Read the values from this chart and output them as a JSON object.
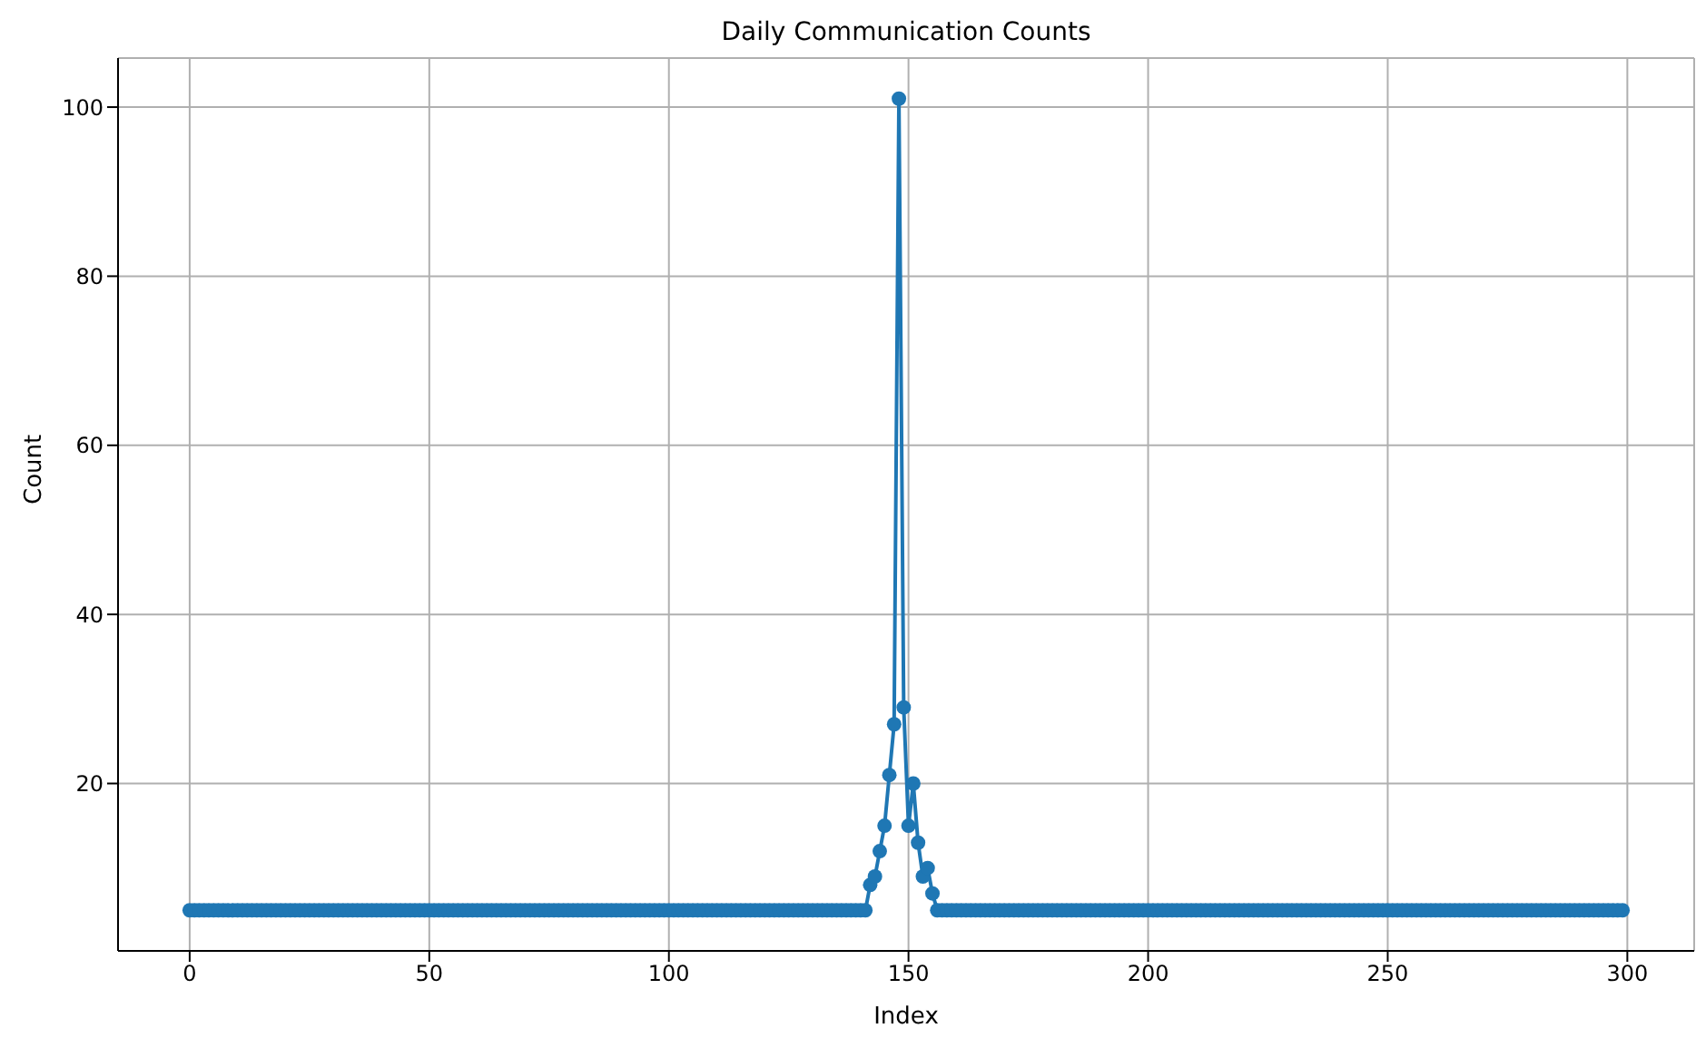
{
  "chart_data": {
    "type": "line",
    "title": "Daily Communication Counts",
    "xlabel": "Index",
    "ylabel": "Count",
    "x": [
      0,
      1,
      2,
      3,
      4,
      5,
      6,
      7,
      8,
      9,
      10,
      11,
      12,
      13,
      14,
      15,
      16,
      17,
      18,
      19,
      20,
      21,
      22,
      23,
      24,
      25,
      26,
      27,
      28,
      29,
      30,
      31,
      32,
      33,
      34,
      35,
      36,
      37,
      38,
      39,
      40,
      41,
      42,
      43,
      44,
      45,
      46,
      47,
      48,
      49,
      50,
      51,
      52,
      53,
      54,
      55,
      56,
      57,
      58,
      59,
      60,
      61,
      62,
      63,
      64,
      65,
      66,
      67,
      68,
      69,
      70,
      71,
      72,
      73,
      74,
      75,
      76,
      77,
      78,
      79,
      80,
      81,
      82,
      83,
      84,
      85,
      86,
      87,
      88,
      89,
      90,
      91,
      92,
      93,
      94,
      95,
      96,
      97,
      98,
      99,
      100,
      101,
      102,
      103,
      104,
      105,
      106,
      107,
      108,
      109,
      110,
      111,
      112,
      113,
      114,
      115,
      116,
      117,
      118,
      119,
      120,
      121,
      122,
      123,
      124,
      125,
      126,
      127,
      128,
      129,
      130,
      131,
      132,
      133,
      134,
      135,
      136,
      137,
      138,
      139,
      140,
      141,
      142,
      143,
      144,
      145,
      146,
      147,
      148,
      149,
      150,
      151,
      152,
      153,
      154,
      155,
      156,
      157,
      158,
      159,
      160,
      161,
      162,
      163,
      164,
      165,
      166,
      167,
      168,
      169,
      170,
      171,
      172,
      173,
      174,
      175,
      176,
      177,
      178,
      179,
      180,
      181,
      182,
      183,
      184,
      185,
      186,
      187,
      188,
      189,
      190,
      191,
      192,
      193,
      194,
      195,
      196,
      197,
      198,
      199,
      200,
      201,
      202,
      203,
      204,
      205,
      206,
      207,
      208,
      209,
      210,
      211,
      212,
      213,
      214,
      215,
      216,
      217,
      218,
      219,
      220,
      221,
      222,
      223,
      224,
      225,
      226,
      227,
      228,
      229,
      230,
      231,
      232,
      233,
      234,
      235,
      236,
      237,
      238,
      239,
      240,
      241,
      242,
      243,
      244,
      245,
      246,
      247,
      248,
      249,
      250,
      251,
      252,
      253,
      254,
      255,
      256,
      257,
      258,
      259,
      260,
      261,
      262,
      263,
      264,
      265,
      266,
      267,
      268,
      269,
      270,
      271,
      272,
      273,
      274,
      275,
      276,
      277,
      278,
      279,
      280,
      281,
      282,
      283,
      284,
      285,
      286,
      287,
      288,
      289,
      290,
      291,
      292,
      293,
      294,
      295,
      296,
      297,
      298,
      299
    ],
    "series": [
      {
        "color": "#1f77b4",
        "values": [
          5,
          5,
          5,
          5,
          5,
          5,
          5,
          5,
          5,
          5,
          5,
          5,
          5,
          5,
          5,
          5,
          5,
          5,
          5,
          5,
          5,
          5,
          5,
          5,
          5,
          5,
          5,
          5,
          5,
          5,
          5,
          5,
          5,
          5,
          5,
          5,
          5,
          5,
          5,
          5,
          5,
          5,
          5,
          5,
          5,
          5,
          5,
          5,
          5,
          5,
          5,
          5,
          5,
          5,
          5,
          5,
          5,
          5,
          5,
          5,
          5,
          5,
          5,
          5,
          5,
          5,
          5,
          5,
          5,
          5,
          5,
          5,
          5,
          5,
          5,
          5,
          5,
          5,
          5,
          5,
          5,
          5,
          5,
          5,
          5,
          5,
          5,
          5,
          5,
          5,
          5,
          5,
          5,
          5,
          5,
          5,
          5,
          5,
          5,
          5,
          5,
          5,
          5,
          5,
          5,
          5,
          5,
          5,
          5,
          5,
          5,
          5,
          5,
          5,
          5,
          5,
          5,
          5,
          5,
          5,
          5,
          5,
          5,
          5,
          5,
          5,
          5,
          5,
          5,
          5,
          5,
          5,
          5,
          5,
          5,
          5,
          5,
          5,
          5,
          5,
          5,
          5,
          8,
          9,
          12,
          15,
          21,
          27,
          101,
          29,
          15,
          20,
          13,
          9,
          10,
          7,
          5,
          5,
          5,
          5,
          5,
          5,
          5,
          5,
          5,
          5,
          5,
          5,
          5,
          5,
          5,
          5,
          5,
          5,
          5,
          5,
          5,
          5,
          5,
          5,
          5,
          5,
          5,
          5,
          5,
          5,
          5,
          5,
          5,
          5,
          5,
          5,
          5,
          5,
          5,
          5,
          5,
          5,
          5,
          5,
          5,
          5,
          5,
          5,
          5,
          5,
          5,
          5,
          5,
          5,
          5,
          5,
          5,
          5,
          5,
          5,
          5,
          5,
          5,
          5,
          5,
          5,
          5,
          5,
          5,
          5,
          5,
          5,
          5,
          5,
          5,
          5,
          5,
          5,
          5,
          5,
          5,
          5,
          5,
          5,
          5,
          5,
          5,
          5,
          5,
          5,
          5,
          5,
          5,
          5,
          5,
          5,
          5,
          5,
          5,
          5,
          5,
          5,
          5,
          5,
          5,
          5,
          5,
          5,
          5,
          5,
          5,
          5,
          5,
          5,
          5,
          5,
          5,
          5,
          5,
          5,
          5,
          5,
          5,
          5,
          5,
          5,
          5,
          5,
          5,
          5,
          5,
          5,
          5,
          5,
          5,
          5,
          5,
          5,
          5,
          5,
          5,
          5,
          5,
          5
        ]
      }
    ],
    "xlim": [
      -14.95,
      313.95
    ],
    "xticks": [
      0,
      50,
      100,
      150,
      200,
      250,
      300
    ],
    "ylim": [
      0.2,
      105.8
    ],
    "yticks": [
      20,
      40,
      60,
      80,
      100
    ],
    "grid": true,
    "marker": "circle",
    "line_style": "solid",
    "legend": false
  }
}
